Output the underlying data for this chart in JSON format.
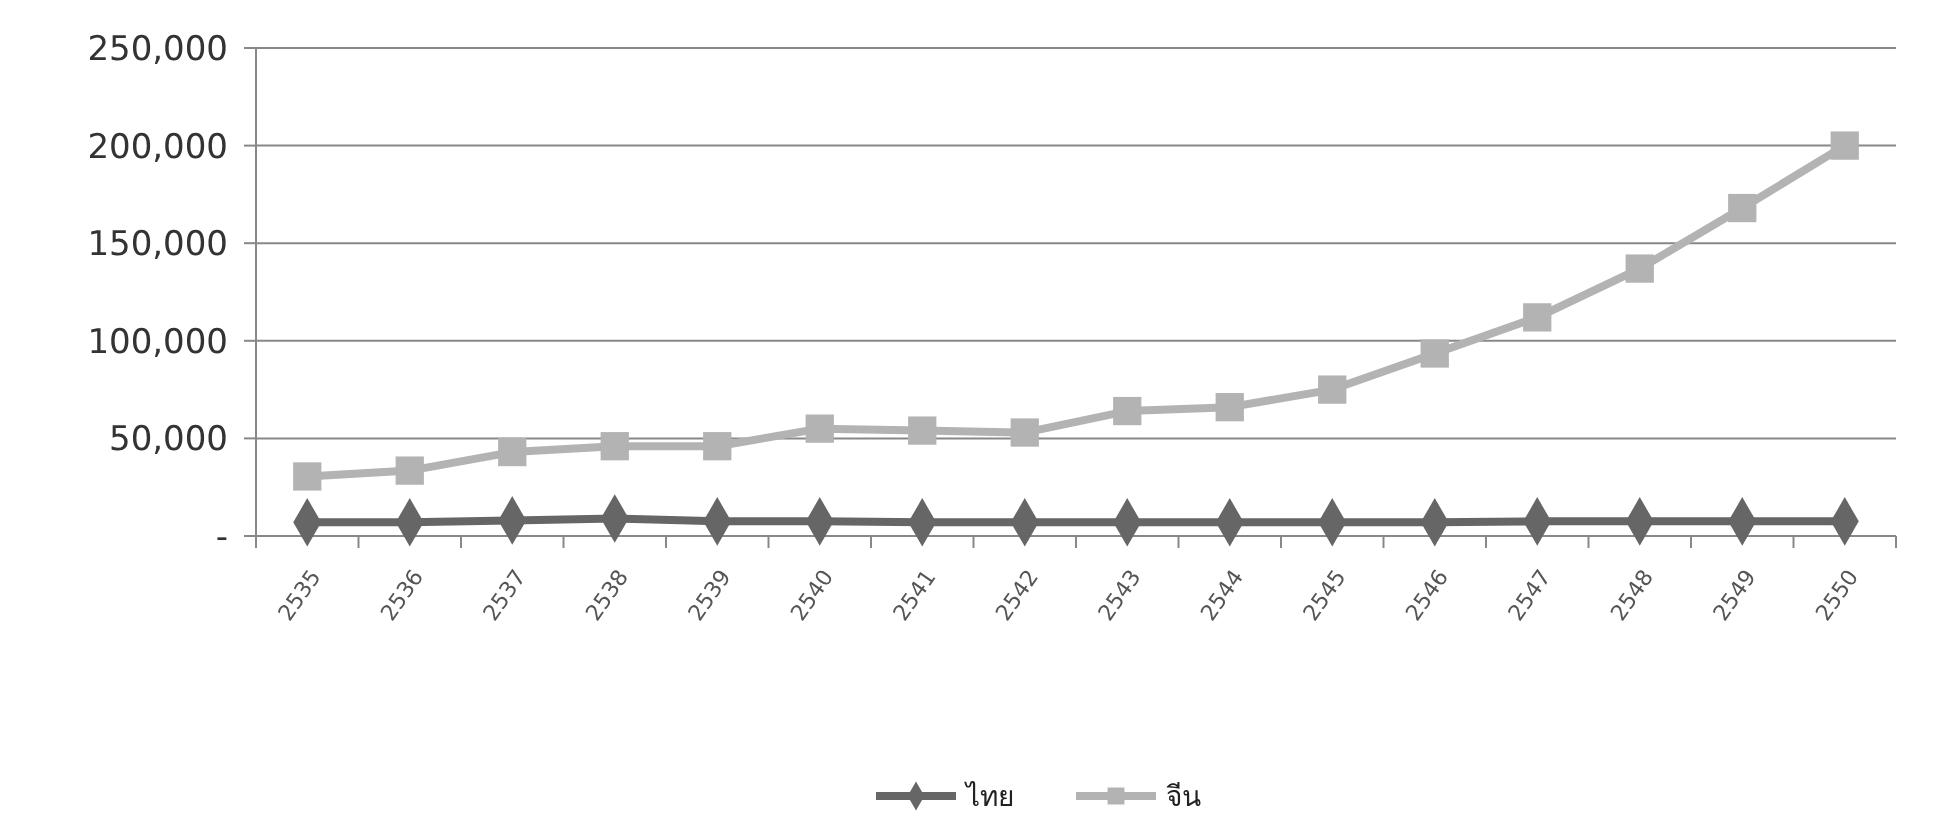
{
  "chart_data": {
    "type": "line",
    "categories": [
      "2535",
      "2536",
      "2537",
      "2538",
      "2539",
      "2540",
      "2541",
      "2542",
      "2543",
      "2544",
      "2545",
      "2546",
      "2547",
      "2548",
      "2549",
      "2550"
    ],
    "series": [
      {
        "name": "ไทย",
        "color": "#666666",
        "marker": "diamond",
        "values": [
          7000,
          7000,
          8000,
          9000,
          7500,
          7500,
          7000,
          7000,
          7000,
          7000,
          7000,
          7000,
          7500,
          7500,
          7500,
          7500
        ]
      },
      {
        "name": "จีน",
        "color": "#b3b3b3",
        "marker": "square",
        "values": [
          30500,
          33500,
          43000,
          46000,
          46000,
          55000,
          54000,
          53000,
          64000,
          66000,
          75000,
          93500,
          112000,
          137000,
          168000,
          200000
        ]
      }
    ],
    "ylim": [
      0,
      250000
    ],
    "yticks": [
      {
        "value": 0,
        "label": "-"
      },
      {
        "value": 50000,
        "label": "50,000"
      },
      {
        "value": 100000,
        "label": "100,000"
      },
      {
        "value": 150000,
        "label": "150,000"
      },
      {
        "value": 200000,
        "label": "200,000"
      },
      {
        "value": 250000,
        "label": "250,000"
      }
    ],
    "grid": "y",
    "legend": "bottom"
  }
}
